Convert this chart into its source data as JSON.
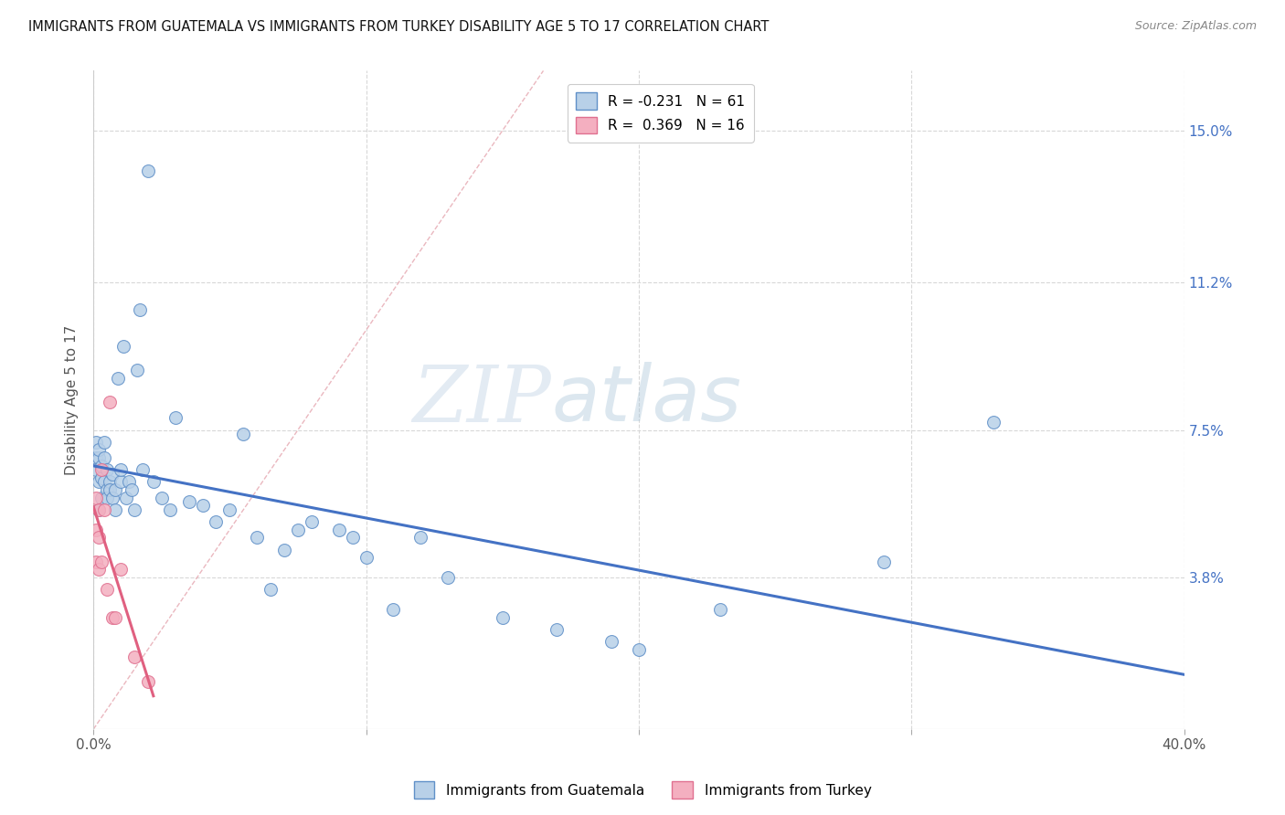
{
  "title": "IMMIGRANTS FROM GUATEMALA VS IMMIGRANTS FROM TURKEY DISABILITY AGE 5 TO 17 CORRELATION CHART",
  "source": "Source: ZipAtlas.com",
  "ylabel": "Disability Age 5 to 17",
  "ytick_labels": [
    "3.8%",
    "7.5%",
    "11.2%",
    "15.0%"
  ],
  "ytick_values": [
    0.038,
    0.075,
    0.112,
    0.15
  ],
  "xlim": [
    0.0,
    0.4
  ],
  "ylim": [
    0.0,
    0.165
  ],
  "color_guatemala": "#b8d0e8",
  "color_turkey": "#f4afc0",
  "color_edge_guatemala": "#6090c8",
  "color_edge_turkey": "#e07090",
  "color_line_guatemala": "#4472c4",
  "color_line_turkey": "#e06080",
  "color_diagonal": "#e8b0b8",
  "watermark_zip": "ZIP",
  "watermark_atlas": "atlas",
  "guatemala_x": [
    0.001,
    0.001,
    0.001,
    0.002,
    0.002,
    0.002,
    0.002,
    0.003,
    0.003,
    0.003,
    0.004,
    0.004,
    0.004,
    0.005,
    0.005,
    0.005,
    0.006,
    0.006,
    0.007,
    0.007,
    0.008,
    0.008,
    0.009,
    0.01,
    0.01,
    0.011,
    0.012,
    0.013,
    0.014,
    0.015,
    0.016,
    0.017,
    0.018,
    0.02,
    0.022,
    0.025,
    0.028,
    0.03,
    0.035,
    0.04,
    0.045,
    0.05,
    0.055,
    0.06,
    0.065,
    0.07,
    0.075,
    0.08,
    0.09,
    0.095,
    0.1,
    0.11,
    0.12,
    0.13,
    0.15,
    0.17,
    0.19,
    0.2,
    0.23,
    0.29,
    0.33
  ],
  "guatemala_y": [
    0.068,
    0.072,
    0.065,
    0.062,
    0.068,
    0.055,
    0.07,
    0.063,
    0.058,
    0.066,
    0.072,
    0.062,
    0.068,
    0.06,
    0.065,
    0.058,
    0.062,
    0.06,
    0.064,
    0.058,
    0.055,
    0.06,
    0.088,
    0.062,
    0.065,
    0.096,
    0.058,
    0.062,
    0.06,
    0.055,
    0.09,
    0.105,
    0.065,
    0.14,
    0.062,
    0.058,
    0.055,
    0.078,
    0.057,
    0.056,
    0.052,
    0.055,
    0.074,
    0.048,
    0.035,
    0.045,
    0.05,
    0.052,
    0.05,
    0.048,
    0.043,
    0.03,
    0.048,
    0.038,
    0.028,
    0.025,
    0.022,
    0.02,
    0.03,
    0.042,
    0.077
  ],
  "turkey_x": [
    0.001,
    0.001,
    0.001,
    0.002,
    0.002,
    0.002,
    0.003,
    0.003,
    0.004,
    0.005,
    0.006,
    0.007,
    0.008,
    0.01,
    0.015,
    0.02
  ],
  "turkey_y": [
    0.058,
    0.05,
    0.042,
    0.055,
    0.048,
    0.04,
    0.065,
    0.042,
    0.055,
    0.035,
    0.082,
    0.028,
    0.028,
    0.04,
    0.018,
    0.012
  ]
}
